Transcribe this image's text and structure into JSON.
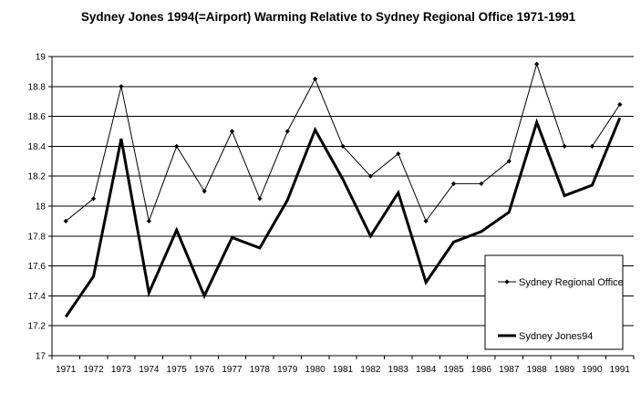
{
  "chart_data": {
    "type": "line",
    "title": "Sydney Jones 1994(=Airport)  Warming Relative to Sydney Regional Office 1971-1991",
    "xlabel": "",
    "ylabel": "",
    "x": [
      "1971",
      "1972",
      "1973",
      "1974",
      "1975",
      "1976",
      "1977",
      "1978",
      "1979",
      "1980",
      "1981",
      "1982",
      "1983",
      "1984",
      "1985",
      "1986",
      "1987",
      "1988",
      "1989",
      "1990",
      "1991"
    ],
    "ylim": [
      17,
      19
    ],
    "yticks": [
      "17",
      "17.2",
      "17.4",
      "17.6",
      "17.8",
      "18",
      "18.2",
      "18.4",
      "18.6",
      "18.8",
      "19"
    ],
    "grid": true,
    "legend_placement": "bottom-right",
    "series": [
      {
        "name": "Sydney Regional Office",
        "color": "#000000",
        "style": "thin-with-diamond-markers",
        "values": [
          17.9,
          18.05,
          18.8,
          17.9,
          18.4,
          18.1,
          18.5,
          18.05,
          18.5,
          18.85,
          18.4,
          18.2,
          18.35,
          17.9,
          18.15,
          18.15,
          18.3,
          18.95,
          18.4,
          18.4,
          18.68
        ]
      },
      {
        "name": "Sydney Jones94",
        "color": "#000000",
        "style": "thick-no-markers",
        "values": [
          17.26,
          17.53,
          18.45,
          17.42,
          17.84,
          17.4,
          17.79,
          17.72,
          18.04,
          18.51,
          18.18,
          17.8,
          18.09,
          17.49,
          17.76,
          17.83,
          17.96,
          18.56,
          18.07,
          18.14,
          18.59
        ]
      }
    ]
  }
}
